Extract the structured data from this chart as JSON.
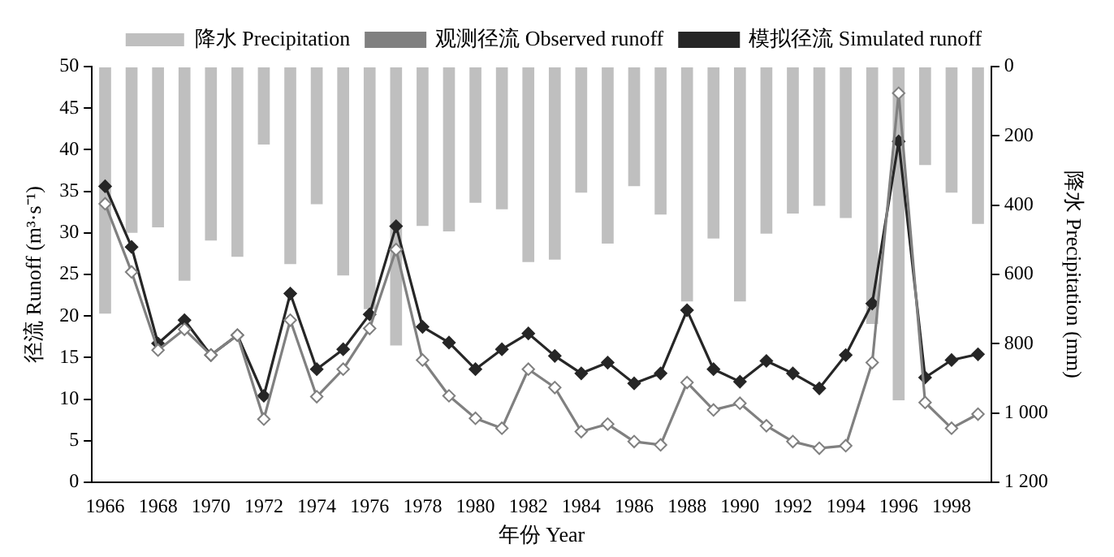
{
  "chart_data": {
    "type": "line",
    "categories": [
      "1966",
      null,
      "1968",
      null,
      "1970",
      null,
      "1972",
      null,
      "1974",
      null,
      "1976",
      null,
      "1978",
      null,
      "1980",
      null,
      "1982",
      null,
      "1984",
      null,
      "1986",
      null,
      "1988",
      null,
      "1990",
      null,
      "1992",
      null,
      "1994",
      null,
      "1996",
      null,
      "1998",
      null
    ],
    "series": [
      {
        "name": "降水 Precipitation",
        "type": "bar",
        "axis": "y2",
        "color": "#bfbfbf",
        "values": [
          713,
          480,
          464,
          618,
          502,
          549,
          225,
          570,
          397,
          603,
          700,
          805,
          460,
          476,
          393,
          412,
          564,
          557,
          364,
          511,
          345,
          427,
          678,
          496,
          678,
          482,
          424,
          402,
          437,
          743,
          963,
          284,
          364,
          454
        ]
      },
      {
        "name": "观测径流 Observed runoff",
        "color": "#808080",
        "marker": "diamond",
        "values": [
          33.5,
          25.3,
          15.9,
          18.4,
          15.3,
          17.7,
          7.6,
          19.5,
          10.3,
          13.6,
          18.5,
          28.0,
          14.7,
          10.4,
          7.7,
          6.5,
          13.6,
          11.4,
          6.1,
          7.0,
          4.9,
          4.5,
          12.0,
          8.7,
          9.5,
          6.8,
          4.9,
          4.1,
          4.4,
          14.4,
          46.8,
          9.6,
          6.5,
          8.2
        ]
      },
      {
        "name": "模拟径流 Simulated runoff",
        "color": "#262626",
        "marker": "diamond",
        "values": [
          35.6,
          28.3,
          16.7,
          19.5,
          15.3,
          17.7,
          10.4,
          22.7,
          13.6,
          16.0,
          20.2,
          30.8,
          18.7,
          16.8,
          13.6,
          16.0,
          17.9,
          15.2,
          13.1,
          14.4,
          11.9,
          13.1,
          20.7,
          13.6,
          12.1,
          14.6,
          13.1,
          11.3,
          15.3,
          21.5,
          41.0,
          12.6,
          14.7,
          15.4
        ]
      }
    ],
    "xlabel": "年份 Year",
    "ylabel": "径流 Runoff (m³·s⁻¹)",
    "y2label": "降水 Precipitation (mm)",
    "ylim": [
      0,
      50
    ],
    "yticks": [
      0,
      5,
      10,
      15,
      20,
      25,
      30,
      35,
      40,
      45,
      50
    ],
    "y2lim": [
      1200,
      0
    ],
    "y2ticks": [
      0,
      200,
      400,
      600,
      800,
      {
        "value": 1000,
        "label": "1 000"
      },
      {
        "value": 1200,
        "label": "1 200"
      }
    ],
    "grid": false,
    "legend": "top"
  }
}
